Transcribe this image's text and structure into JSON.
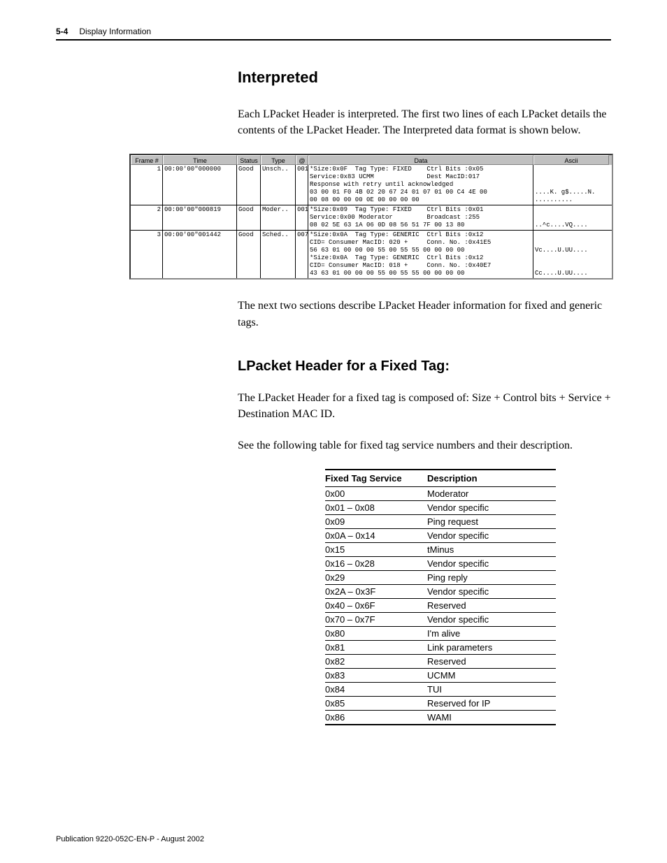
{
  "header": {
    "page_num": "5-4",
    "title": "Display Information"
  },
  "section1": {
    "heading": "Interpreted",
    "p1": "Each LPacket Header is interpreted. The first two lines of each LPacket details the contents of the LPacket Header. The Interpreted data format is shown below.",
    "p2": "The next two sections describe LPacket Header information for fixed and generic tags."
  },
  "capture": {
    "columns": [
      "Frame #",
      "Time",
      "Status",
      "Type",
      "@",
      "Data",
      "Ascii"
    ],
    "rows": [
      {
        "frame": "1",
        "time": "00:00'00\"000000",
        "status": "Good",
        "type": "Unsch..",
        "at": "001",
        "data": "*Size:0x0F  Tag Type: FIXED    Ctrl Bits :0x05\nService:0x83 UCMM              Dest MacID:017\nResponse with retry until acknowledged\n03 00 01 F0 4B 02 20 67 24 01 07 01 00 C4 4E 00\n00 08 00 00 00 0E 00 00 00 00",
        "ascii": "\n\n\n....K. g$.....N.\n.........."
      },
      {
        "frame": "2",
        "time": "00:00'00\"000819",
        "status": "Good",
        "type": "Moder..",
        "at": "001",
        "data": "*Size:0x09  Tag Type: FIXED    Ctrl Bits :0x01\nService:0x00 Moderator         Broadcast :255\n08 02 5E 63 1A 06 0D 08 56 51 7F 00 13 80",
        "ascii": "\n\n..^c....VQ...."
      },
      {
        "frame": "3",
        "time": "00:00'00\"001442",
        "status": "Good",
        "type": "Sched..",
        "at": "007",
        "data": "*Size:0x0A  Tag Type: GENERIC  Ctrl Bits :0x12\nCID= Consumer MacID: 020 +     Conn. No. :0x41E5\n56 63 01 00 00 00 55 00 55 55 00 00 00 00\n*Size:0x0A  Tag Type: GENERIC  Ctrl Bits :0x12\nCID= Consumer MacID: 018 +     Conn. No. :0x40E7\n43 63 01 00 00 00 55 00 55 55 00 00 00 00",
        "ascii": "\n\nVc....U.UU....\n\n\nCc....U.UU...."
      }
    ]
  },
  "section2": {
    "heading": "LPacket Header for a Fixed Tag:",
    "p1": "The LPacket Header for a fixed tag is composed of: Size + Control bits + Service + Destination MAC ID.",
    "p2": "See the following table for fixed tag service numbers and their description."
  },
  "service_table": {
    "headers": [
      "Fixed Tag Service",
      "Description"
    ],
    "rows": [
      [
        "0x00",
        "Moderator"
      ],
      [
        "0x01 – 0x08",
        "Vendor specific"
      ],
      [
        "0x09",
        "Ping request"
      ],
      [
        "0x0A – 0x14",
        "Vendor specific"
      ],
      [
        "0x15",
        "tMinus"
      ],
      [
        "0x16 – 0x28",
        "Vendor specific"
      ],
      [
        "0x29",
        "Ping reply"
      ],
      [
        "0x2A – 0x3F",
        "Vendor specific"
      ],
      [
        "0x40 – 0x6F",
        "Reserved"
      ],
      [
        "0x70 – 0x7F",
        "Vendor specific"
      ],
      [
        "0x80",
        "I'm alive"
      ],
      [
        "0x81",
        "Link parameters"
      ],
      [
        "0x82",
        "Reserved"
      ],
      [
        "0x83",
        "UCMM"
      ],
      [
        "0x84",
        "TUI"
      ],
      [
        "0x85",
        "Reserved for IP"
      ],
      [
        "0x86",
        "WAMI"
      ]
    ]
  },
  "footer": "Publication 9220-052C-EN-P - August 2002"
}
